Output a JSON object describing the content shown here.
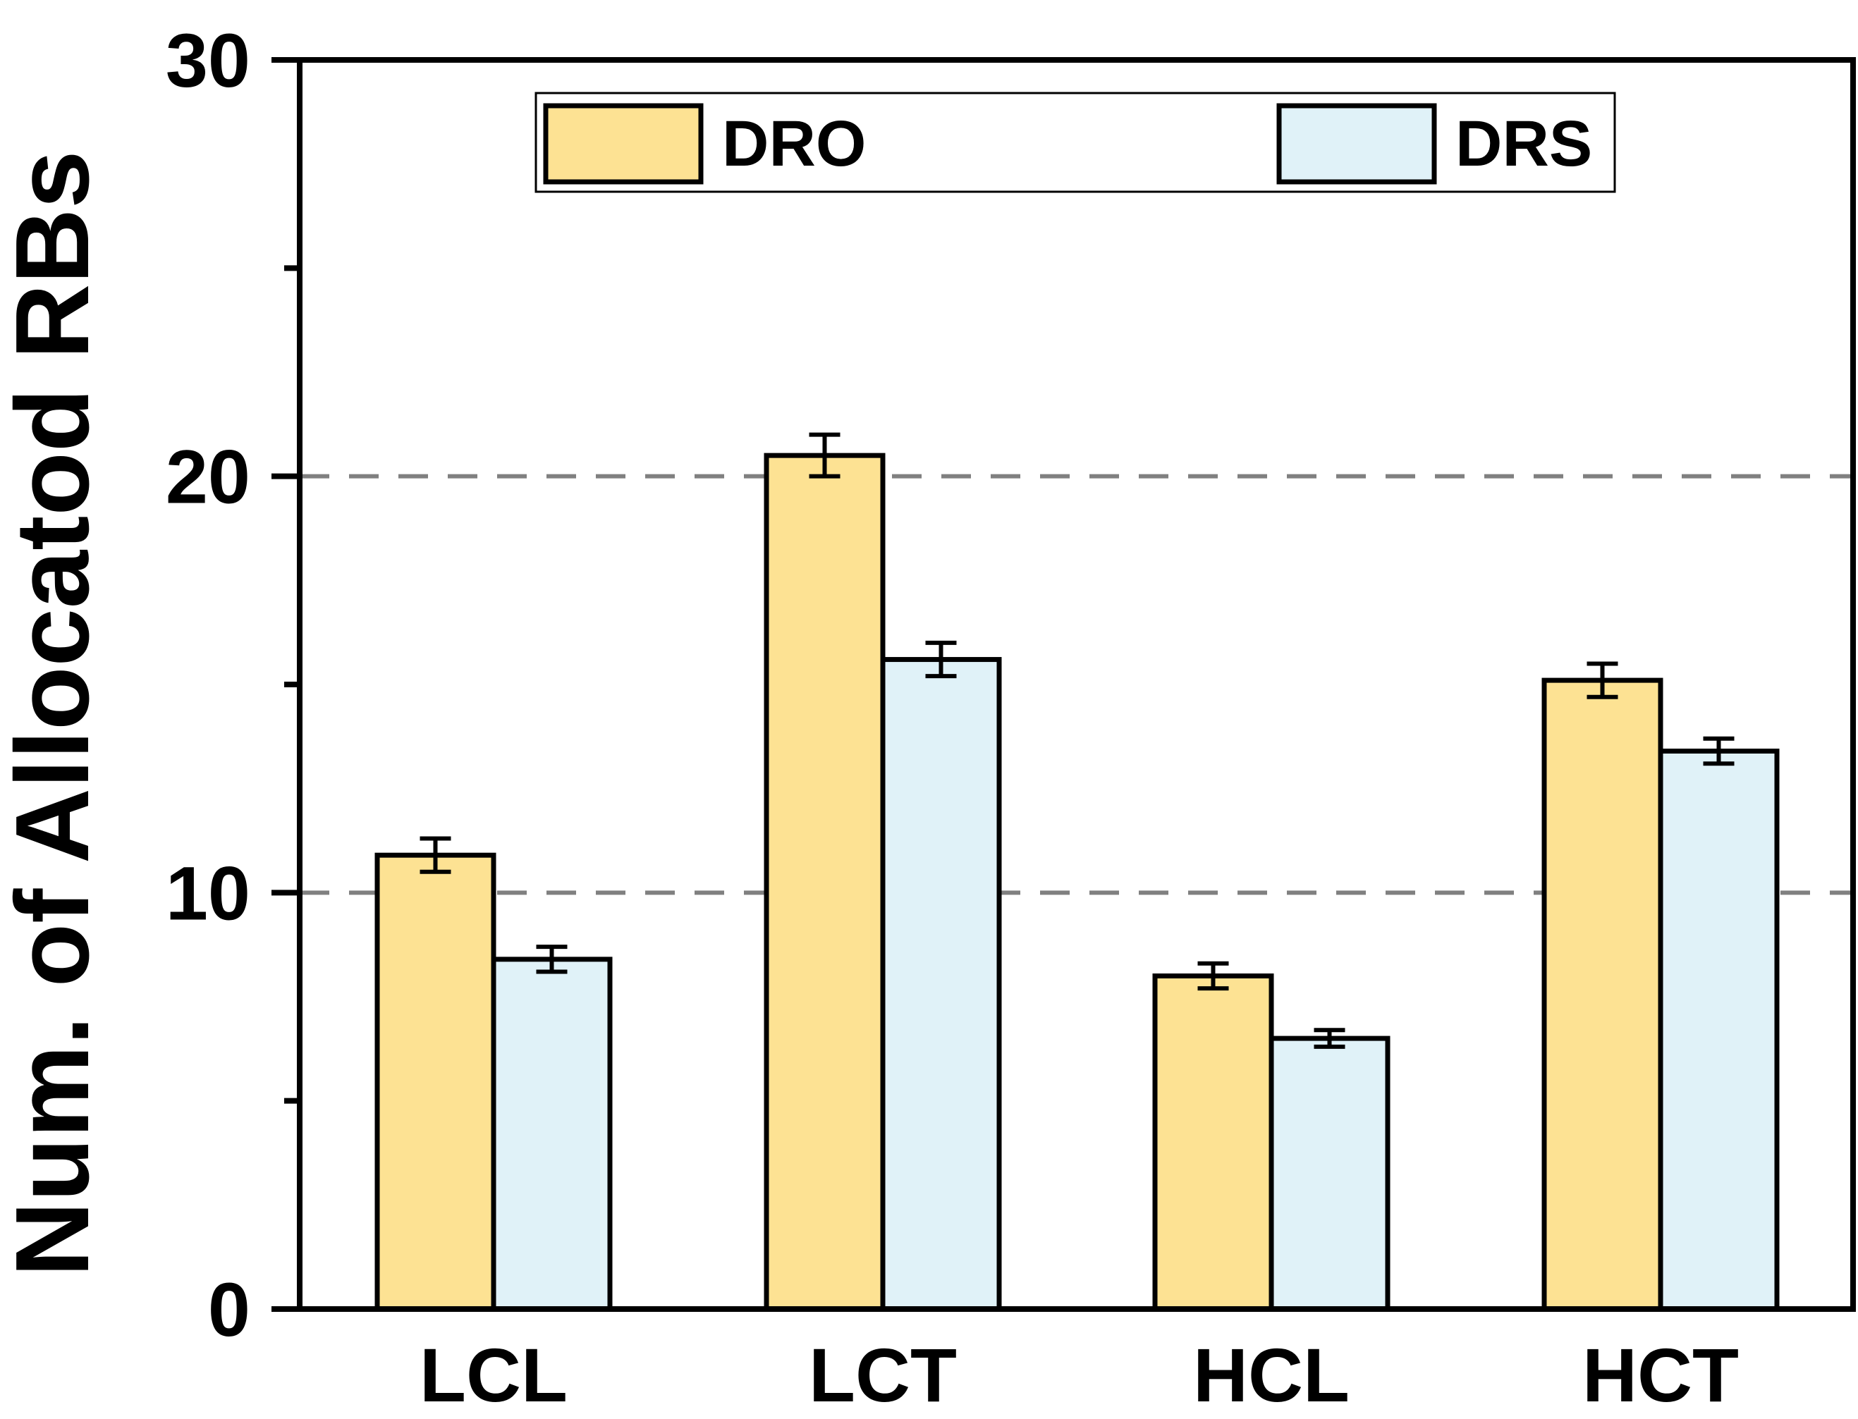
{
  "chart_data": {
    "type": "bar",
    "title": "",
    "xlabel": "",
    "ylabel": "Num. of Allocatod RBs",
    "ylim": [
      0,
      30
    ],
    "yticks": [
      "0",
      "10",
      "20",
      "30"
    ],
    "ytick_values": [
      0,
      10,
      20,
      30
    ],
    "minor_ytick_values": [
      5,
      15,
      25
    ],
    "grid": "dashed horizontal at 10 and 20",
    "legend_position": "top",
    "categories": [
      "LCL",
      "LCT",
      "HCL",
      "HCT"
    ],
    "series": [
      {
        "name": "DRO",
        "values": [
          10.9,
          20.5,
          8.0,
          15.1
        ],
        "errors": [
          0.4,
          0.5,
          0.3,
          0.4
        ],
        "color": "#FDE293"
      },
      {
        "name": "DRS",
        "values": [
          8.4,
          15.6,
          6.5,
          13.4
        ],
        "errors": [
          0.3,
          0.4,
          0.2,
          0.3
        ],
        "color": "#E0F2F8"
      }
    ]
  }
}
